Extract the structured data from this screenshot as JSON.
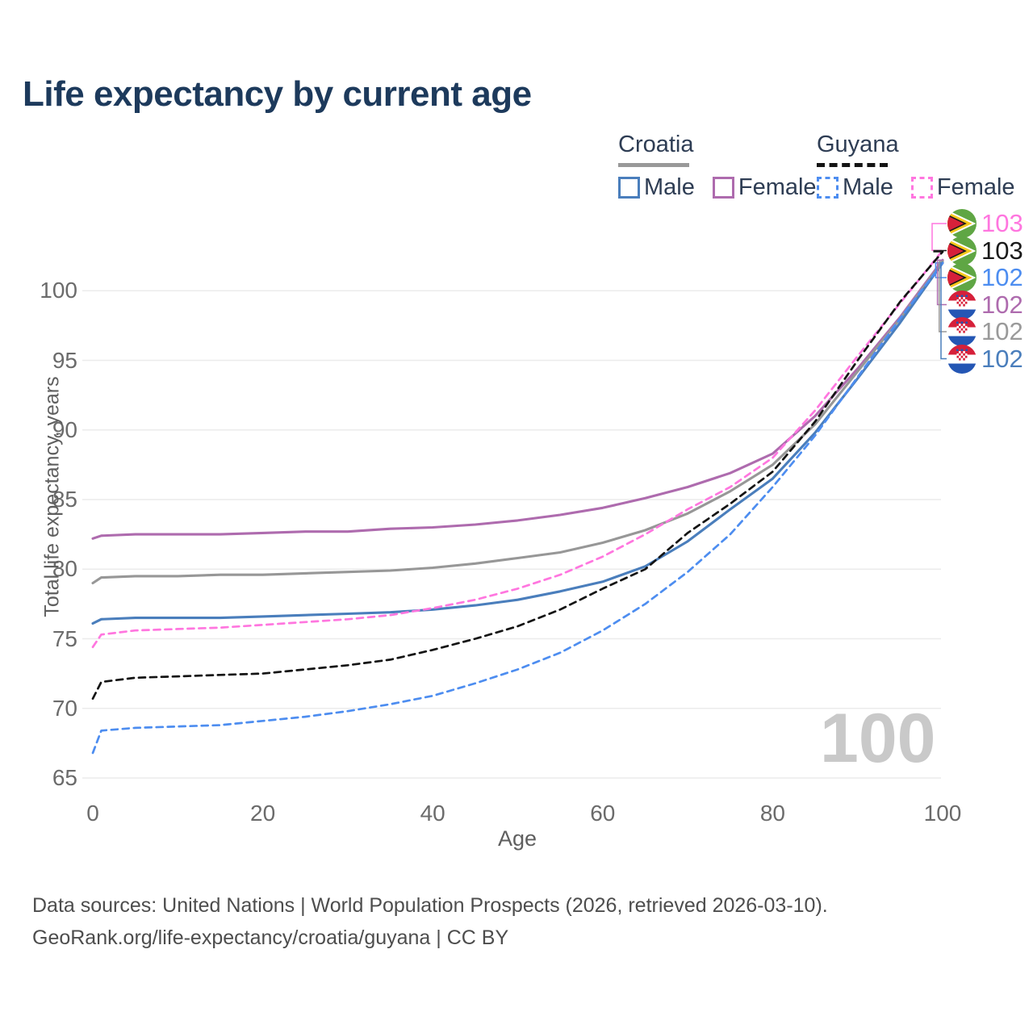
{
  "title": "Life expectancy by current age",
  "legend": {
    "groups": [
      {
        "country": "Croatia",
        "line_style": "solid",
        "items": [
          {
            "label": "Male",
            "color": "#4a7ebc"
          },
          {
            "label": "Female",
            "color": "#ae6bae"
          }
        ]
      },
      {
        "country": "Guyana",
        "line_style": "dashed",
        "items": [
          {
            "label": "Male",
            "color": "#4d8df0"
          },
          {
            "label": "Female",
            "color": "#ff76df"
          }
        ]
      }
    ]
  },
  "watermark": "100",
  "footer": {
    "line1": "Data sources: United Nations | World Population Prospects (2026, retrieved 2026-03-10).",
    "line2": "GeoRank.org/life-expectancy/croatia/guyana | CC BY"
  },
  "end_labels": [
    {
      "value": "103",
      "flag": "guyana",
      "series": "guyana_female",
      "color": "#ff76df"
    },
    {
      "value": "103",
      "flag": "guyana",
      "series": "guyana_total",
      "color": "#1a1a1a"
    },
    {
      "value": "102",
      "flag": "guyana",
      "series": "guyana_male",
      "color": "#4d8df0"
    },
    {
      "value": "102",
      "flag": "croatia",
      "series": "croatia_female",
      "color": "#ae6bae"
    },
    {
      "value": "102",
      "flag": "croatia",
      "series": "croatia_total",
      "color": "#9a9a9a"
    },
    {
      "value": "102",
      "flag": "croatia",
      "series": "croatia_male",
      "color": "#4a7ebc"
    }
  ],
  "chart_data": {
    "type": "line",
    "title": "Life expectancy by current age",
    "xlabel": "Age",
    "ylabel": "Total life expectancy, years",
    "xlim": [
      0,
      100
    ],
    "ylim": [
      64,
      104
    ],
    "x_ticks": [
      0,
      20,
      40,
      60,
      80,
      100
    ],
    "y_ticks": [
      65,
      70,
      75,
      80,
      85,
      90,
      95,
      100
    ],
    "grid": "horizontal",
    "legend_position": "top-right",
    "ages": [
      0,
      1,
      5,
      10,
      15,
      20,
      25,
      30,
      35,
      40,
      45,
      50,
      55,
      60,
      65,
      70,
      75,
      80,
      85,
      90,
      95,
      100
    ],
    "series": [
      {
        "key": "croatia_female",
        "name": "Croatia Female",
        "color": "#ae6bae",
        "dash": "solid",
        "values": [
          82.2,
          82.4,
          82.5,
          82.5,
          82.5,
          82.6,
          82.7,
          82.7,
          82.9,
          83.0,
          83.2,
          83.5,
          83.9,
          84.4,
          85.1,
          85.9,
          86.9,
          88.3,
          91.0,
          94.4,
          98.1,
          102.2
        ]
      },
      {
        "key": "croatia_total",
        "name": "Croatia Both sexes",
        "color": "#979797",
        "dash": "solid",
        "values": [
          79.0,
          79.4,
          79.5,
          79.5,
          79.6,
          79.6,
          79.7,
          79.8,
          79.9,
          80.1,
          80.4,
          80.8,
          81.2,
          81.9,
          82.8,
          84.0,
          85.6,
          87.5,
          90.4,
          94.2,
          98.0,
          102.1
        ]
      },
      {
        "key": "croatia_male",
        "name": "Croatia Male",
        "color": "#4a7ebc",
        "dash": "solid",
        "values": [
          76.1,
          76.4,
          76.5,
          76.5,
          76.5,
          76.6,
          76.7,
          76.8,
          76.9,
          77.1,
          77.4,
          77.8,
          78.4,
          79.1,
          80.2,
          82.0,
          84.3,
          86.5,
          89.8,
          93.7,
          97.7,
          102.0
        ]
      },
      {
        "key": "guyana_female",
        "name": "Guyana Female",
        "color": "#ff76df",
        "dash": "dashed",
        "values": [
          74.4,
          75.3,
          75.6,
          75.7,
          75.8,
          76.0,
          76.2,
          76.4,
          76.7,
          77.2,
          77.8,
          78.6,
          79.6,
          80.9,
          82.5,
          84.3,
          85.9,
          88.0,
          91.4,
          95.3,
          99.1,
          102.9
        ]
      },
      {
        "key": "guyana_total",
        "name": "Guyana Both sexes",
        "color": "#141414",
        "dash": "dashed",
        "values": [
          70.7,
          71.9,
          72.2,
          72.3,
          72.4,
          72.5,
          72.8,
          73.1,
          73.5,
          74.2,
          75.0,
          75.9,
          77.1,
          78.6,
          80.0,
          82.6,
          84.7,
          87.0,
          90.6,
          95.0,
          99.2,
          102.8
        ]
      },
      {
        "key": "guyana_male",
        "name": "Guyana Male",
        "color": "#4d8df0",
        "dash": "dashed",
        "values": [
          66.8,
          68.4,
          68.6,
          68.7,
          68.8,
          69.1,
          69.4,
          69.8,
          70.3,
          70.9,
          71.8,
          72.8,
          74.0,
          75.6,
          77.5,
          79.8,
          82.5,
          85.9,
          89.6,
          93.8,
          98.0,
          102.0
        ]
      }
    ]
  }
}
